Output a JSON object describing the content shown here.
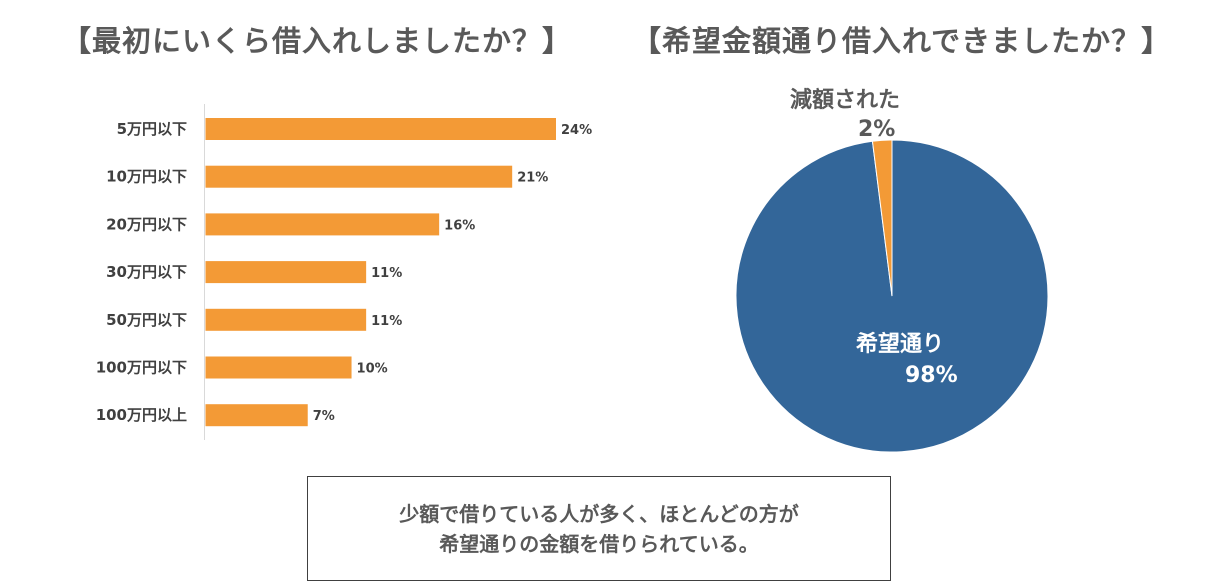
{
  "chart_data": [
    {
      "type": "bar",
      "orientation": "horizontal",
      "title": "【最初にいくら借入れしましたか？】",
      "categories": [
        "5万円以下",
        "10万円以下",
        "20万円以下",
        "30万円以下",
        "50万円以下",
        "100万円以下",
        "100万円以上"
      ],
      "values": [
        24,
        21,
        16,
        11,
        11,
        10,
        7
      ],
      "value_labels": [
        "24%",
        "21%",
        "16%",
        "11%",
        "11%",
        "10%",
        "7%"
      ],
      "unit": "%",
      "xlim": [
        0,
        26
      ],
      "color": "#F39A36"
    },
    {
      "type": "pie",
      "title": "【希望金額通り借入れできましたか？】",
      "slices": [
        {
          "name": "希望通り",
          "value": 98,
          "label": "98%",
          "color": "#336699"
        },
        {
          "name": "減額された",
          "value": 2,
          "label": "2%",
          "color": "#F39A36"
        }
      ]
    }
  ],
  "note": {
    "line1": "少額で借りている人が多く、ほとんどの方が",
    "line2": "希望通りの金額を借りられている。"
  }
}
